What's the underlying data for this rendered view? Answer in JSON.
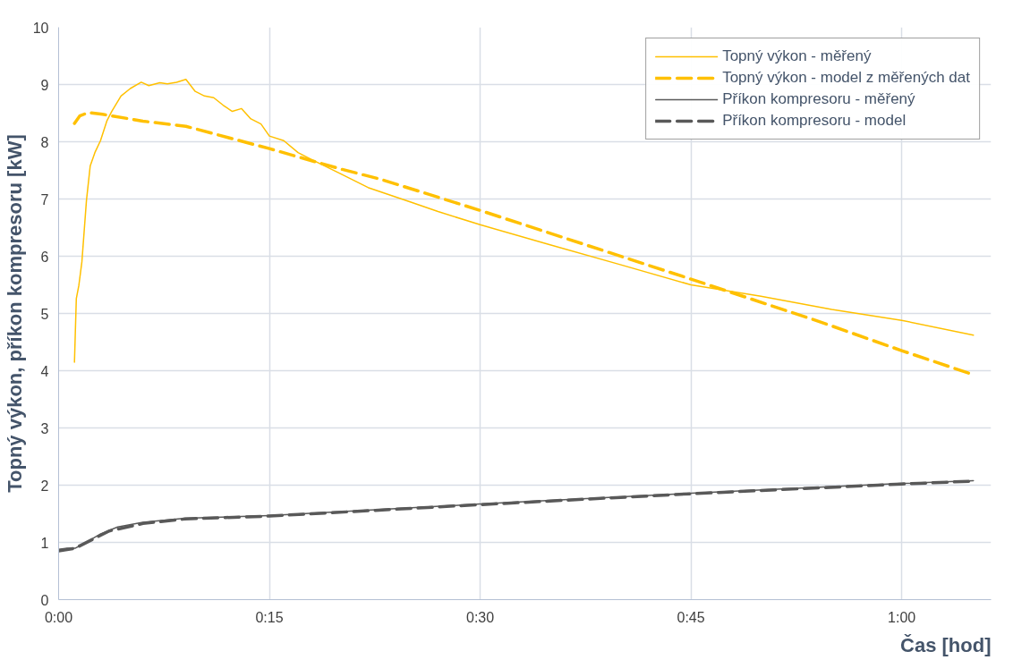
{
  "chart_data": {
    "type": "line",
    "xlabel": "Čas [hod]",
    "ylabel": "Topný výkon, příkon kompresoru [kW]",
    "xlim": [
      0,
      1.106
    ],
    "xticks": [
      {
        "value": 0,
        "label": "0:00"
      },
      {
        "value": 0.25,
        "label": "0:15"
      },
      {
        "value": 0.5,
        "label": "0:30"
      },
      {
        "value": 0.75,
        "label": "0:45"
      },
      {
        "value": 1,
        "label": "1:00"
      }
    ],
    "ylim": [
      0,
      10
    ],
    "yticks": [
      0,
      1,
      2,
      3,
      4,
      5,
      6,
      7,
      8,
      9,
      10
    ],
    "grid": true,
    "legend": "top right",
    "series": [
      {
        "name": "Topný výkon - měřený",
        "color": "#ffc000",
        "line_style": "solid",
        "x": [
          0.0188,
          0.021,
          0.024,
          0.0276,
          0.033,
          0.0375,
          0.043,
          0.0497,
          0.0574,
          0.063,
          0.074,
          0.085,
          0.098,
          0.107,
          0.12,
          0.129,
          0.14,
          0.151,
          0.162,
          0.173,
          0.184,
          0.195,
          0.206,
          0.217,
          0.228,
          0.24,
          0.25,
          0.267,
          0.284,
          0.3,
          0.333,
          0.367,
          0.417,
          0.45,
          0.5,
          0.583,
          0.667,
          0.75,
          0.833,
          0.917,
          1.0,
          1.085
        ],
        "values": [
          4.15,
          5.26,
          5.49,
          5.9,
          6.97,
          7.58,
          7.81,
          8.02,
          8.37,
          8.53,
          8.8,
          8.93,
          9.04,
          8.98,
          9.03,
          9.01,
          9.04,
          9.09,
          8.88,
          8.8,
          8.77,
          8.64,
          8.53,
          8.58,
          8.4,
          8.31,
          8.1,
          8.02,
          7.81,
          7.69,
          7.45,
          7.2,
          6.95,
          6.78,
          6.55,
          6.2,
          5.85,
          5.5,
          5.3,
          5.07,
          4.88,
          4.62
        ]
      },
      {
        "name": "Topný výkon - model z měřených dat",
        "color": "#ffc000",
        "line_style": "dashed",
        "x": [
          0.0188,
          0.025,
          0.035,
          0.052,
          0.1,
          0.151,
          0.25,
          0.333,
          0.383,
          0.5,
          0.6,
          0.75,
          0.9,
          1.0,
          1.085
        ],
        "values": [
          8.32,
          8.45,
          8.51,
          8.48,
          8.36,
          8.27,
          7.88,
          7.53,
          7.34,
          6.8,
          6.32,
          5.6,
          4.87,
          4.35,
          3.93
        ]
      },
      {
        "name": "Příkon kompresoru - měřený",
        "color": "#595959",
        "line_style": "solid",
        "x": [
          0,
          0.01,
          0.02,
          0.03,
          0.05,
          0.07,
          0.1,
          0.15,
          0.25,
          0.5,
          0.75,
          1.0,
          1.085
        ],
        "values": [
          0.88,
          0.9,
          0.9,
          0.98,
          1.15,
          1.27,
          1.35,
          1.42,
          1.47,
          1.67,
          1.86,
          2.03,
          2.08
        ]
      },
      {
        "name": "Příkon kompresoru - model",
        "color": "#595959",
        "line_style": "dashed",
        "x": [
          0,
          0.02,
          0.04,
          0.06,
          0.1,
          0.15,
          0.25,
          0.5,
          0.75,
          1.0,
          1.085
        ],
        "values": [
          0.85,
          0.9,
          1.05,
          1.2,
          1.33,
          1.41,
          1.46,
          1.66,
          1.85,
          2.02,
          2.07
        ]
      }
    ]
  }
}
